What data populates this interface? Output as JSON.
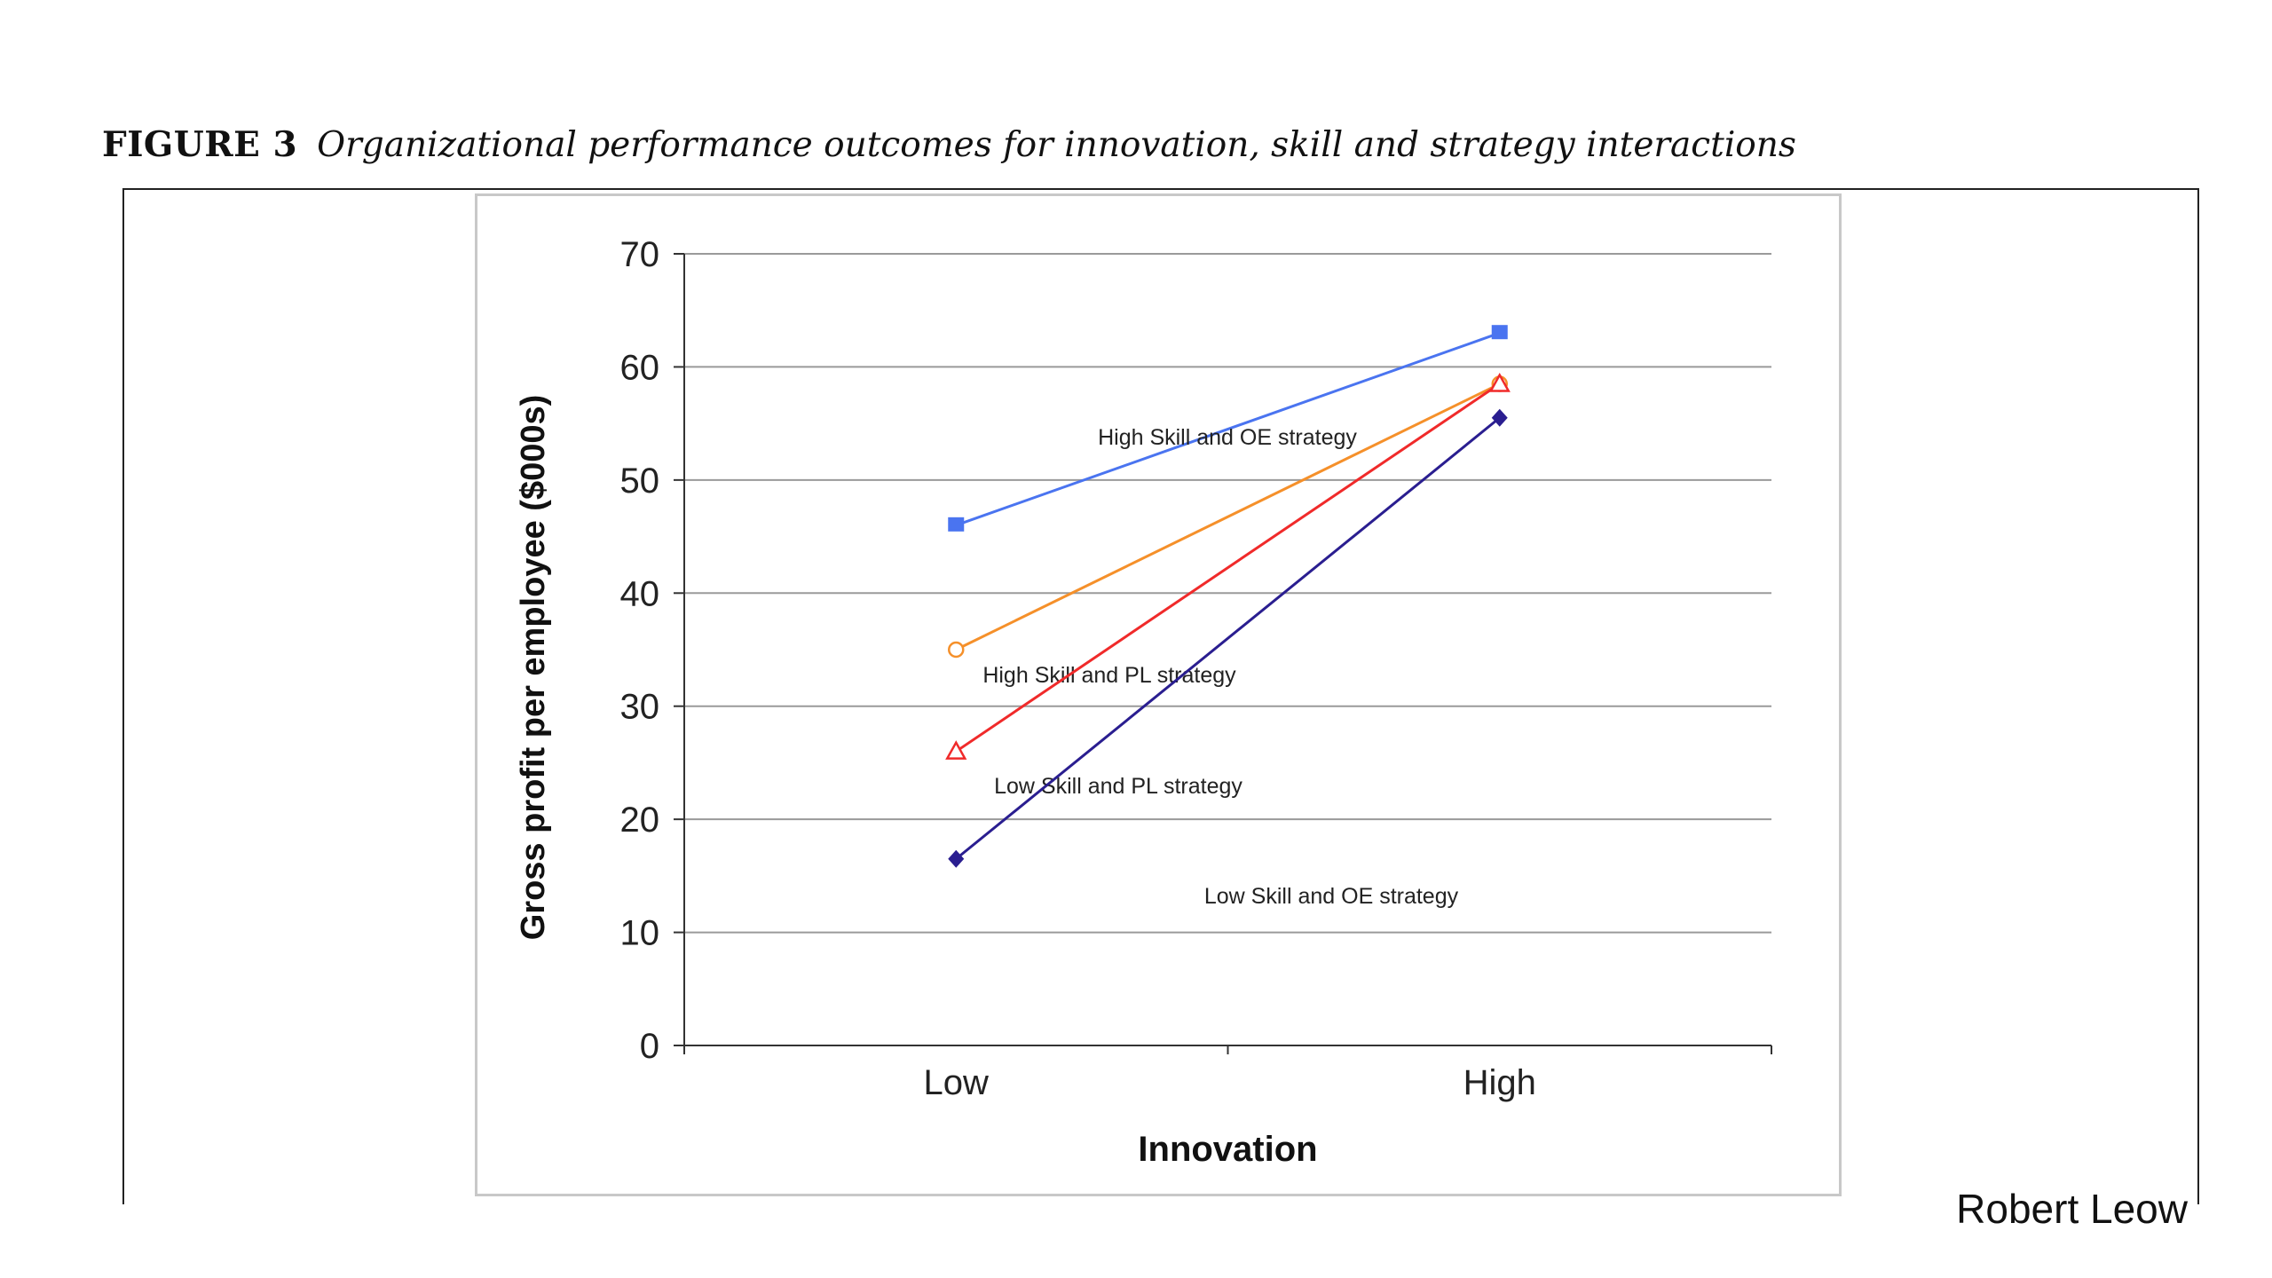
{
  "caption": {
    "figure": "FIGURE 3",
    "title": "Organizational performance outcomes for innovation, skill and strategy interactions"
  },
  "author": "Robert Leow",
  "chart_data": {
    "type": "line",
    "xlabel": "Innovation",
    "ylabel": "Gross profit per employee ($000s)",
    "categories": [
      "Low",
      "High"
    ],
    "ylim": [
      0,
      70
    ],
    "yticks": [
      0,
      10,
      20,
      30,
      40,
      50,
      60,
      70
    ],
    "grid": true,
    "series": [
      {
        "name": "High Skill and OE strategy",
        "values": [
          46,
          63
        ],
        "color": "#4a74f0",
        "marker": "square"
      },
      {
        "name": "High Skill and PL strategy",
        "values": [
          35,
          58.5
        ],
        "color": "#f5902a",
        "marker": "circle-open"
      },
      {
        "name": "Low Skill and PL strategy",
        "values": [
          26,
          58.5
        ],
        "color": "#f02a2a",
        "marker": "triangle-open"
      },
      {
        "name": "Low Skill and OE strategy",
        "values": [
          16.5,
          55.5
        ],
        "color": "#2a1e90",
        "marker": "diamond"
      }
    ]
  }
}
